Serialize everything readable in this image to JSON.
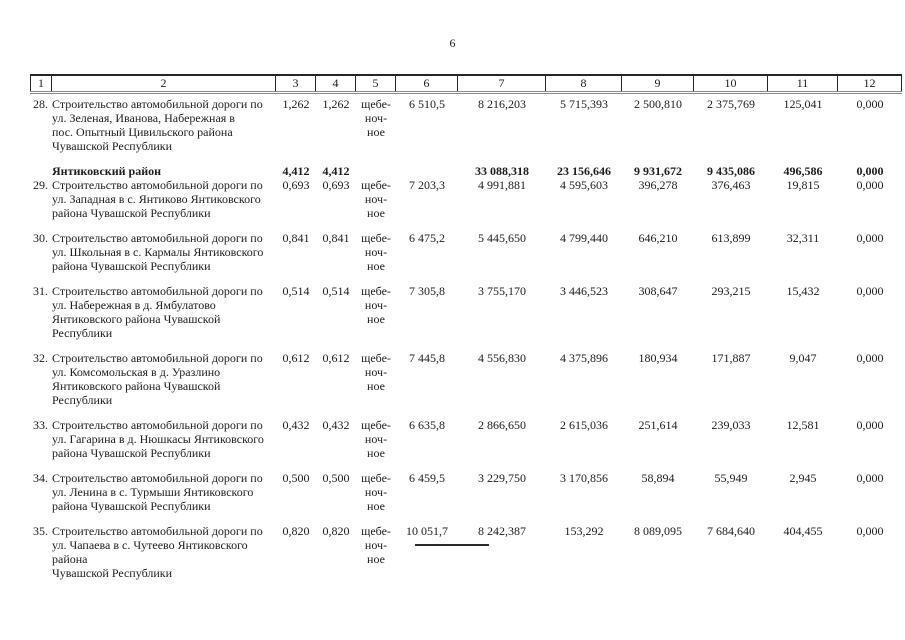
{
  "page": {
    "number": "6"
  },
  "table": {
    "columns": [
      "1",
      "2",
      "3",
      "4",
      "5",
      "6",
      "7",
      "8",
      "9",
      "10",
      "11",
      "12"
    ],
    "rows": [
      {
        "kind": "item",
        "num": "28.",
        "desc": [
          "Строительство автомобильной дороги по",
          "ул. Зеленая, Иванова, Набережная в",
          "пос. Опытный Цивильского района",
          "Чувашской Республики"
        ],
        "values": [
          "1,262",
          "1,262",
          [
            "щебе-",
            "ноч-",
            "ное"
          ],
          "6 510,5",
          "8 216,203",
          "5 715,393",
          "2 500,810",
          "2 375,769",
          "125,041",
          "0,000"
        ]
      },
      {
        "kind": "district",
        "name": "Янтиковский район",
        "values": [
          "4,412",
          "4,412",
          "",
          "",
          "33 088,318",
          "23 156,646",
          "9 931,672",
          "9 435,086",
          "496,586",
          "0,000"
        ]
      },
      {
        "kind": "item",
        "num": "29.",
        "desc": [
          "Строительство автомобильной дороги по",
          "ул. Западная в с. Янтиково Янтиковского",
          "района Чувашской Республики"
        ],
        "values": [
          "0,693",
          "0,693",
          [
            "щебе-",
            "ноч-",
            "ное"
          ],
          "7 203,3",
          "4 991,881",
          "4 595,603",
          "396,278",
          "376,463",
          "19,815",
          "0,000"
        ]
      },
      {
        "kind": "item",
        "num": "30.",
        "desc": [
          "Строительство автомобильной дороги по",
          "ул. Школьная в с. Кармалы Янтиковского",
          "района Чувашской Республики"
        ],
        "values": [
          "0,841",
          "0,841",
          [
            "щебе-",
            "ноч-",
            "ное"
          ],
          "6 475,2",
          "5 445,650",
          "4 799,440",
          "646,210",
          "613,899",
          "32,311",
          "0,000"
        ]
      },
      {
        "kind": "item",
        "num": "31.",
        "desc": [
          "Строительство автомобильной дороги по",
          "ул. Набережная в д. Ямбулатово",
          "Янтиковского района Чувашской Республики"
        ],
        "values": [
          "0,514",
          "0,514",
          [
            "щебе-",
            "ноч-",
            "ное"
          ],
          "7 305,8",
          "3 755,170",
          "3 446,523",
          "308,647",
          "293,215",
          "15,432",
          "0,000"
        ]
      },
      {
        "kind": "item",
        "num": "32.",
        "desc": [
          "Строительство автомобильной дороги по",
          "ул. Комсомольская в д. Уразлино",
          "Янтиковского района Чувашской Республики"
        ],
        "values": [
          "0,612",
          "0,612",
          [
            "щебе-",
            "ноч-",
            "ное"
          ],
          "7 445,8",
          "4 556,830",
          "4 375,896",
          "180,934",
          "171,887",
          "9,047",
          "0,000"
        ]
      },
      {
        "kind": "item",
        "num": "33.",
        "desc": [
          "Строительство автомобильной дороги по",
          "ул. Гагарина в д. Нюшкасы Янтиковского",
          "района Чувашской Республики"
        ],
        "values": [
          "0,432",
          "0,432",
          [
            "щебе-",
            "ноч-",
            "ное"
          ],
          "6 635,8",
          "2 866,650",
          "2 615,036",
          "251,614",
          "239,033",
          "12,581",
          "0,000"
        ]
      },
      {
        "kind": "item",
        "num": "34.",
        "desc": [
          "Строительство автомобильной дороги по",
          "ул. Ленина в с. Турмыши Янтиковского",
          "района Чувашской Республики"
        ],
        "values": [
          "0,500",
          "0,500",
          [
            "щебе-",
            "ноч-",
            "ное"
          ],
          "6 459,5",
          "3 229,750",
          "3 170,856",
          "58,894",
          "55,949",
          "2,945",
          "0,000"
        ]
      },
      {
        "kind": "item",
        "num": "35.",
        "desc": [
          "Строительство автомобильной дороги по",
          "ул. Чапаева в с. Чутеево Янтиковского района",
          "Чувашской Республики"
        ],
        "values": [
          "0,820",
          "0,820",
          [
            "щебе-",
            "ноч-",
            "ное"
          ],
          "10 051,7",
          "8 242,387",
          "153,292",
          "8 089,095",
          "7 684,640",
          "404,455",
          "0,000"
        ]
      }
    ]
  }
}
